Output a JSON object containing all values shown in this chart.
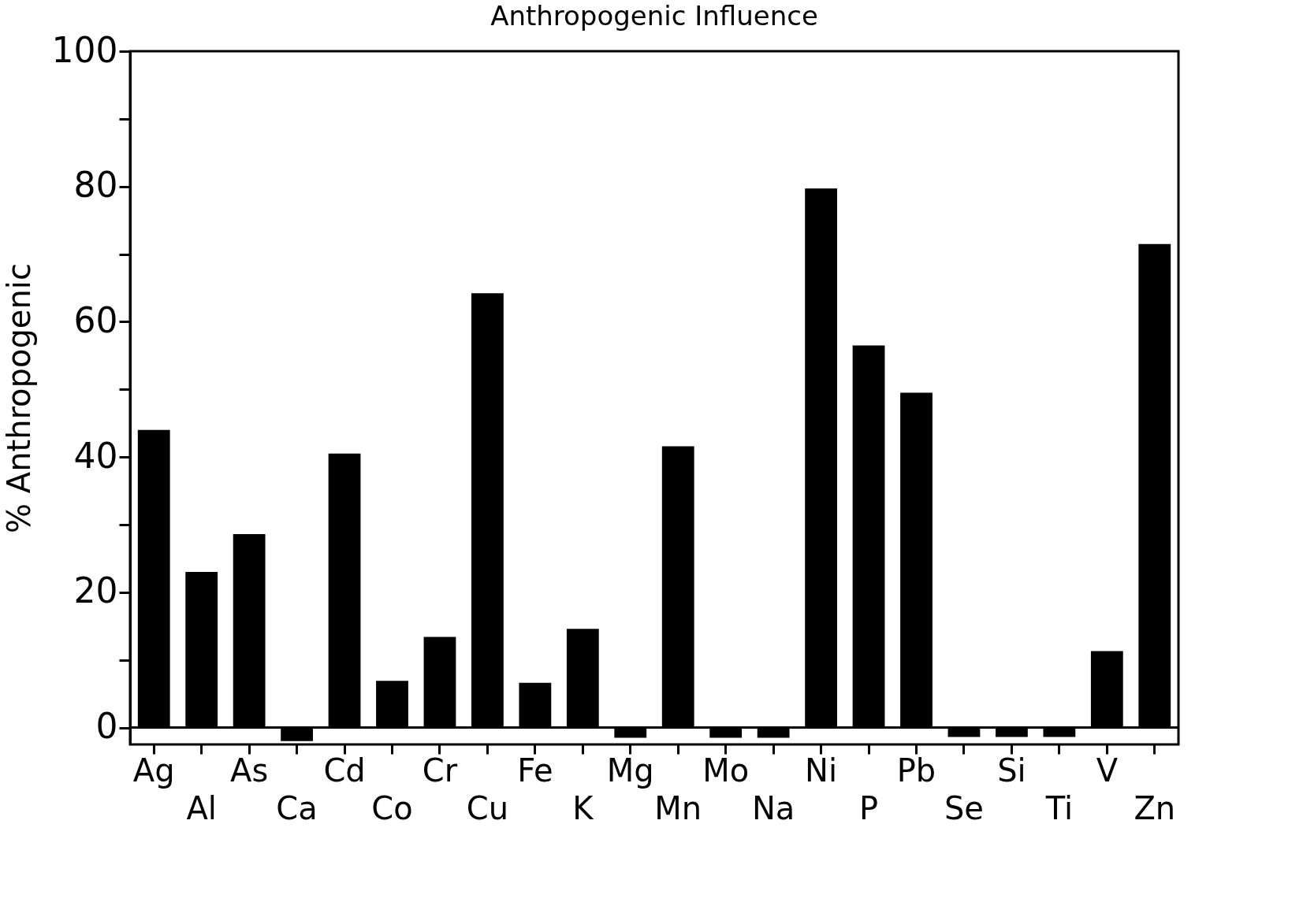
{
  "chart_data": {
    "type": "bar",
    "title": "Anthropogenic Influence",
    "ylabel": "% Anthropogenic",
    "categories": [
      "Ag",
      "Al",
      "As",
      "Ca",
      "Cd",
      "Co",
      "Cr",
      "Cu",
      "Fe",
      "K",
      "Mg",
      "Mn",
      "Mo",
      "Na",
      "Ni",
      "P",
      "Pb",
      "Se",
      "Si",
      "Ti",
      "V",
      "Zn"
    ],
    "values": [
      44,
      23,
      28.6,
      -2,
      40.5,
      6.9,
      13.4,
      64.2,
      6.6,
      14.6,
      -1.5,
      41.6,
      -1.5,
      -1.5,
      79.7,
      56.5,
      49.5,
      -1.4,
      -1.4,
      -1.4,
      11.3,
      71.5
    ],
    "color": "#000000",
    "ylim": [
      -2.5,
      100
    ],
    "yticks": [
      0,
      {
        "value": 10,
        "label": null
      },
      20,
      {
        "value": 30,
        "label": null
      },
      40,
      {
        "value": 50,
        "label": null
      },
      60,
      {
        "value": 70,
        "label": null
      },
      80,
      {
        "value": 90,
        "label": null
      },
      100
    ],
    "ref_lines": [
      {
        "axis": "y",
        "value": 0
      }
    ],
    "grid": false
  }
}
